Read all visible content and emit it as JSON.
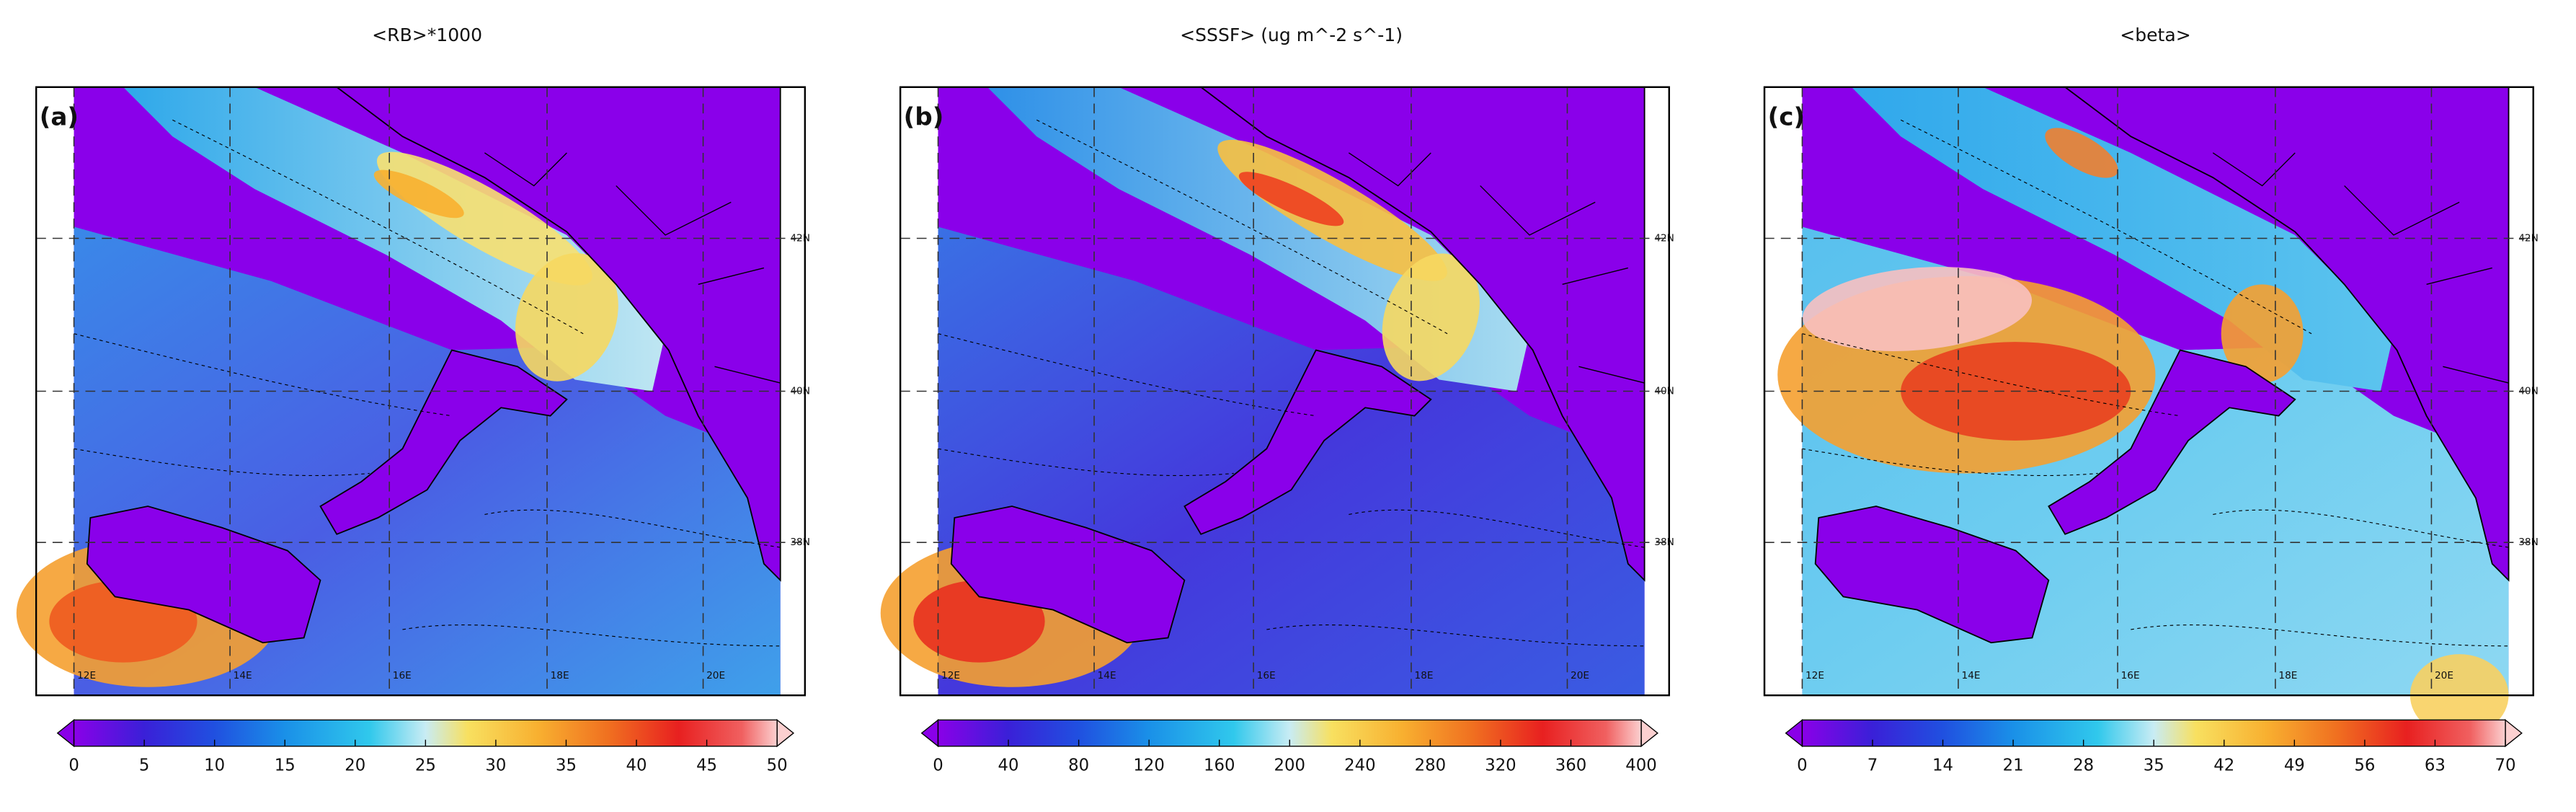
{
  "panels": [
    {
      "title": "<RB>*1000",
      "label": "(a)",
      "colorbar_ticks": [
        0,
        5,
        10,
        15,
        20,
        25,
        30,
        35,
        40,
        45,
        50
      ]
    },
    {
      "title": "<SSSF> (ug m^-2 s^-1)",
      "label": "(b)",
      "colorbar_ticks": [
        0,
        40,
        80,
        120,
        160,
        200,
        240,
        280,
        320,
        360,
        400
      ]
    },
    {
      "title": "<beta>",
      "label": "(c)",
      "colorbar_ticks": [
        0,
        7,
        14,
        21,
        28,
        35,
        42,
        49,
        56,
        63,
        70
      ]
    }
  ],
  "lon_labels": [
    "12E",
    "14E",
    "16E",
    "18E",
    "20E"
  ],
  "lat_labels": [
    "42N",
    "40N",
    "38N"
  ]
}
